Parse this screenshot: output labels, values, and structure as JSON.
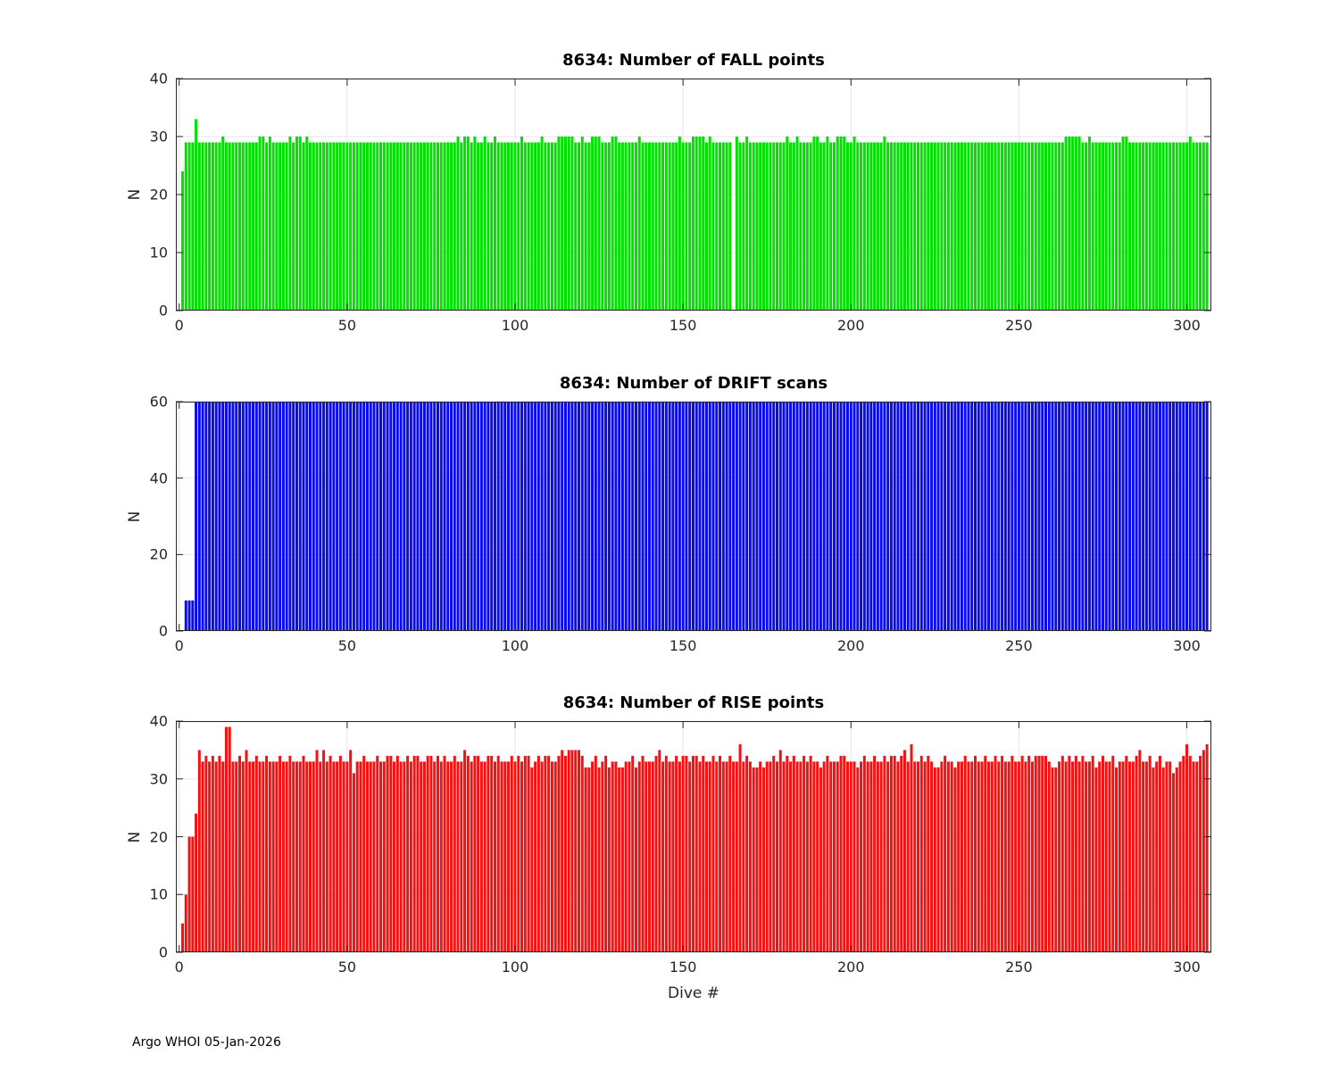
{
  "figure": {
    "footer": "Argo WHOI 05-Jan-2026",
    "background": "#ffffff",
    "axis_color": "#262626",
    "grid_color": "#e6e6e6"
  },
  "chart_data": [
    {
      "type": "bar",
      "title": "8634: Number of FALL points",
      "ylabel": "N",
      "xlabel": "",
      "bar_color": "#00e100",
      "ylim": [
        0,
        40
      ],
      "yticks": [
        0,
        10,
        20,
        30,
        40
      ],
      "xlim": [
        -1,
        307.3
      ],
      "xticks": [
        0,
        50,
        100,
        150,
        200,
        250,
        300
      ],
      "x_start": 1,
      "grid": "on",
      "values": [
        24,
        29,
        29,
        29,
        33,
        29,
        29,
        29,
        29,
        29,
        29,
        29,
        30,
        29,
        29,
        29,
        29,
        29,
        29,
        29,
        29,
        29,
        29,
        30,
        30,
        29,
        30,
        29,
        29,
        29,
        29,
        29,
        30,
        29,
        30,
        30,
        29,
        30,
        29,
        29,
        29,
        29,
        29,
        29,
        29,
        29,
        29,
        29,
        29,
        29,
        29,
        29,
        29,
        29,
        29,
        29,
        29,
        29,
        29,
        29,
        29,
        29,
        29,
        29,
        29,
        29,
        29,
        29,
        29,
        29,
        29,
        29,
        29,
        29,
        29,
        29,
        29,
        29,
        29,
        29,
        29,
        29,
        30,
        29,
        30,
        30,
        29,
        30,
        29,
        29,
        30,
        29,
        29,
        30,
        29,
        29,
        29,
        29,
        29,
        29,
        29,
        30,
        29,
        29,
        29,
        29,
        29,
        30,
        29,
        29,
        29,
        29,
        30,
        30,
        30,
        30,
        30,
        29,
        29,
        30,
        29,
        29,
        30,
        30,
        30,
        29,
        29,
        29,
        30,
        30,
        29,
        29,
        29,
        29,
        29,
        29,
        30,
        29,
        29,
        29,
        29,
        29,
        29,
        29,
        29,
        29,
        29,
        29,
        30,
        29,
        29,
        29,
        30,
        30,
        30,
        30,
        29,
        30,
        29,
        29,
        29,
        29,
        29,
        29,
        0,
        30,
        29,
        29,
        30,
        29,
        29,
        29,
        29,
        29,
        29,
        29,
        29,
        29,
        29,
        29,
        30,
        29,
        29,
        30,
        29,
        29,
        29,
        29,
        30,
        30,
        29,
        29,
        30,
        29,
        29,
        30,
        30,
        30,
        29,
        29,
        30,
        29,
        29,
        29,
        29,
        29,
        29,
        29,
        29,
        30,
        29,
        29,
        29,
        29,
        29,
        29,
        29,
        29,
        29,
        29,
        29,
        29,
        29,
        29,
        29,
        29,
        29,
        29,
        29,
        29,
        29,
        29,
        29,
        29,
        29,
        29,
        29,
        29,
        29,
        29,
        29,
        29,
        29,
        29,
        29,
        29,
        29,
        29,
        29,
        29,
        29,
        29,
        29,
        29,
        29,
        29,
        29,
        29,
        29,
        29,
        29,
        29,
        29,
        30,
        30,
        30,
        30,
        30,
        29,
        29,
        30,
        29,
        29,
        29,
        29,
        29,
        29,
        29,
        29,
        29,
        30,
        30,
        29,
        29,
        29,
        29,
        29,
        29,
        29,
        29,
        29,
        29,
        29,
        29,
        29,
        29,
        29,
        29,
        29,
        29,
        30,
        29,
        29,
        29,
        29,
        29
      ]
    },
    {
      "type": "bar",
      "title": "8634: Number of DRIFT scans",
      "ylabel": "N",
      "xlabel": "",
      "bar_color": "#0a0af0",
      "ylim": [
        0,
        60
      ],
      "yticks": [
        0,
        20,
        40,
        60
      ],
      "xlim": [
        -1,
        307.3
      ],
      "xticks": [
        0,
        50,
        100,
        150,
        200,
        250,
        300
      ],
      "x_start": 1,
      "grid": "on",
      "values": [
        0,
        8,
        8,
        8,
        60,
        60,
        60,
        60,
        60,
        60,
        60,
        60,
        60,
        60,
        60,
        60,
        60,
        60,
        60,
        60,
        60,
        60,
        60,
        60,
        60,
        60,
        60,
        60,
        60,
        60,
        60,
        60,
        60,
        60,
        60,
        60,
        60,
        60,
        60,
        60,
        60,
        60,
        60,
        60,
        60,
        60,
        60,
        60,
        60,
        60,
        60,
        60,
        60,
        60,
        60,
        60,
        60,
        60,
        60,
        60,
        60,
        60,
        60,
        60,
        60,
        60,
        60,
        60,
        60,
        60,
        60,
        60,
        60,
        60,
        60,
        60,
        60,
        60,
        60,
        60,
        60,
        60,
        60,
        60,
        60,
        60,
        60,
        60,
        60,
        60,
        60,
        60,
        60,
        60,
        60,
        60,
        60,
        60,
        60,
        60,
        60,
        60,
        60,
        60,
        60,
        60,
        60,
        60,
        60,
        60,
        60,
        60,
        60,
        60,
        60,
        60,
        60,
        60,
        60,
        60,
        60,
        60,
        60,
        60,
        60,
        60,
        60,
        60,
        60,
        60,
        60,
        60,
        60,
        60,
        60,
        60,
        60,
        60,
        60,
        60,
        60,
        60,
        60,
        60,
        60,
        60,
        60,
        60,
        60,
        60,
        60,
        60,
        60,
        60,
        60,
        60,
        60,
        60,
        60,
        60,
        60,
        60,
        60,
        60,
        60,
        60,
        60,
        60,
        60,
        60,
        60,
        60,
        60,
        60,
        60,
        60,
        60,
        60,
        60,
        60,
        60,
        60,
        60,
        60,
        60,
        60,
        60,
        60,
        60,
        60,
        60,
        60,
        60,
        60,
        60,
        60,
        60,
        60,
        60,
        60,
        60,
        60,
        60,
        60,
        60,
        60,
        60,
        60,
        60,
        60,
        60,
        60,
        60,
        60,
        60,
        60,
        60,
        60,
        60,
        60,
        60,
        60,
        60,
        60,
        60,
        60,
        60,
        60,
        60,
        60,
        60,
        60,
        60,
        60,
        60,
        60,
        60,
        60,
        60,
        60,
        60,
        60,
        60,
        60,
        60,
        60,
        60,
        60,
        60,
        60,
        60,
        60,
        60,
        60,
        60,
        60,
        60,
        60,
        60,
        60,
        60,
        60,
        60,
        60,
        60,
        60,
        60,
        60,
        60,
        60,
        60,
        60,
        60,
        60,
        60,
        60,
        60,
        60,
        60,
        60,
        60,
        60,
        60,
        60,
        60,
        60,
        60,
        60,
        60,
        60,
        60,
        60,
        60,
        60,
        60,
        60,
        60,
        60,
        60,
        60,
        60,
        60,
        60,
        60,
        60,
        60
      ]
    },
    {
      "type": "bar",
      "title": "8634: Number of RISE points",
      "ylabel": "N",
      "xlabel": "Dive #",
      "bar_color": "#f31111",
      "ylim": [
        0,
        40
      ],
      "yticks": [
        0,
        10,
        20,
        30,
        40
      ],
      "xlim": [
        -1,
        307.3
      ],
      "xticks": [
        0,
        50,
        100,
        150,
        200,
        250,
        300
      ],
      "x_start": 1,
      "grid": "on",
      "values": [
        5,
        10,
        20,
        20,
        24,
        35,
        33,
        34,
        33,
        34,
        33,
        34,
        33,
        39,
        39,
        33,
        33,
        34,
        33,
        35,
        33,
        33,
        34,
        33,
        33,
        34,
        33,
        33,
        33,
        34,
        33,
        33,
        34,
        33,
        33,
        33,
        34,
        33,
        33,
        33,
        35,
        33,
        35,
        33,
        34,
        33,
        33,
        34,
        33,
        33,
        35,
        31,
        33,
        33,
        34,
        33,
        33,
        33,
        34,
        33,
        33,
        34,
        34,
        33,
        34,
        33,
        33,
        34,
        33,
        34,
        34,
        33,
        33,
        34,
        34,
        33,
        34,
        33,
        34,
        33,
        33,
        34,
        33,
        33,
        35,
        34,
        33,
        34,
        34,
        33,
        33,
        34,
        34,
        33,
        34,
        33,
        33,
        33,
        34,
        33,
        34,
        33,
        34,
        34,
        32,
        33,
        34,
        33,
        34,
        34,
        33,
        33,
        34,
        35,
        34,
        35,
        35,
        35,
        35,
        34,
        32,
        32,
        33,
        34,
        32,
        33,
        34,
        32,
        33,
        33,
        32,
        32,
        33,
        33,
        34,
        32,
        33,
        34,
        33,
        33,
        33,
        34,
        35,
        33,
        34,
        33,
        33,
        34,
        33,
        34,
        34,
        33,
        34,
        34,
        33,
        34,
        33,
        33,
        34,
        33,
        34,
        33,
        33,
        34,
        33,
        33,
        36,
        33,
        34,
        33,
        32,
        32,
        33,
        32,
        33,
        33,
        34,
        33,
        35,
        33,
        34,
        33,
        34,
        33,
        33,
        34,
        33,
        34,
        33,
        33,
        32,
        33,
        34,
        33,
        33,
        33,
        34,
        34,
        33,
        33,
        33,
        32,
        33,
        34,
        33,
        33,
        34,
        33,
        33,
        34,
        33,
        34,
        34,
        33,
        34,
        35,
        33,
        36,
        33,
        33,
        34,
        33,
        34,
        33,
        32,
        32,
        33,
        34,
        33,
        33,
        32,
        33,
        33,
        34,
        33,
        33,
        34,
        33,
        33,
        34,
        33,
        33,
        34,
        33,
        34,
        33,
        33,
        34,
        33,
        33,
        34,
        33,
        34,
        33,
        34,
        34,
        34,
        34,
        33,
        32,
        32,
        33,
        34,
        33,
        34,
        33,
        34,
        33,
        34,
        33,
        33,
        34,
        32,
        33,
        34,
        33,
        33,
        34,
        32,
        33,
        33,
        34,
        33,
        33,
        34,
        35,
        33,
        33,
        34,
        32,
        33,
        34,
        32,
        33,
        33,
        31,
        32,
        33,
        34,
        36,
        34,
        33,
        33,
        34,
        35,
        36
      ]
    }
  ]
}
